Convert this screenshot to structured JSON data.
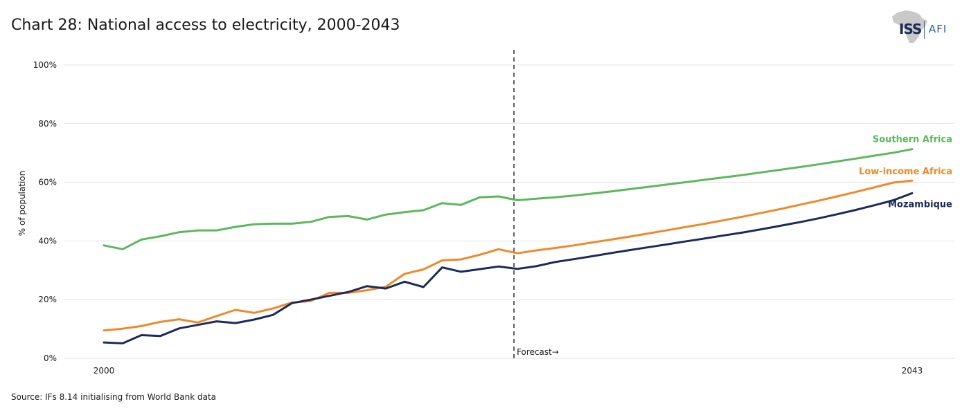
{
  "header": {
    "title": "Chart 28: National access to electricity, 2000-2043",
    "logo_text_left": "ISS",
    "logo_text_right": "AFI"
  },
  "footer": {
    "source": "Source: IFs 8.14 initialising from World Bank data"
  },
  "colors": {
    "southern_africa": "#5cb85c",
    "low_income_africa": "#f0882a",
    "mozambique": "#1b2a5a",
    "logo_iss": "#1b2a5a",
    "logo_afi": "#1f5fa8"
  },
  "chart_data": {
    "type": "line",
    "ylabel": "% of population",
    "ylim": [
      0,
      100
    ],
    "yticks": [
      0,
      20,
      40,
      60,
      80,
      100
    ],
    "ytick_labels": [
      "0%",
      "20%",
      "40%",
      "60%",
      "80%",
      "100%"
    ],
    "xlim": [
      2000,
      2043
    ],
    "xtick_labels": [
      "2000",
      "2043"
    ],
    "grid": true,
    "forecast_start": 2022,
    "forecast_label": "Forecast→",
    "x": [
      2000,
      2001,
      2002,
      2003,
      2004,
      2005,
      2006,
      2007,
      2008,
      2009,
      2010,
      2011,
      2012,
      2013,
      2014,
      2015,
      2016,
      2017,
      2018,
      2019,
      2020,
      2021,
      2022,
      2023,
      2024,
      2025,
      2026,
      2027,
      2028,
      2029,
      2030,
      2031,
      2032,
      2033,
      2034,
      2035,
      2036,
      2037,
      2038,
      2039,
      2040,
      2041,
      2042,
      2043
    ],
    "series": [
      {
        "name": "Southern Africa",
        "color": "#5cb85c",
        "values": [
          38.5,
          37.2,
          40.5,
          41.6,
          43,
          43.6,
          43.6,
          44.8,
          45.7,
          45.9,
          45.9,
          46.5,
          48.2,
          48.5,
          47.3,
          49,
          49.8,
          50.5,
          52.9,
          52.3,
          54.9,
          55.2,
          53.9,
          54.4,
          54.9,
          55.5,
          56.2,
          56.9,
          57.7,
          58.5,
          59.3,
          60.1,
          60.9,
          61.7,
          62.5,
          63.4,
          64.3,
          65.2,
          66.1,
          67.1,
          68.1,
          69.1,
          70.1,
          71.3
        ]
      },
      {
        "name": "Low-income Africa",
        "color": "#f0882a",
        "values": [
          9.5,
          10.1,
          11,
          12.4,
          13.3,
          12.2,
          14.4,
          16.5,
          15.5,
          17,
          19,
          19.5,
          22.3,
          22.3,
          23.2,
          24.4,
          28.8,
          30.3,
          33.4,
          33.7,
          35.3,
          37.2,
          35.8,
          36.8,
          37.6,
          38.5,
          39.5,
          40.5,
          41.5,
          42.6,
          43.7,
          44.8,
          45.9,
          47.1,
          48.3,
          49.6,
          50.9,
          52.3,
          53.7,
          55.2,
          56.7,
          58.3,
          59.9,
          60.6
        ]
      },
      {
        "name": "Mozambique",
        "color": "#1b2a5a",
        "values": [
          5.4,
          5.1,
          7.9,
          7.6,
          10.2,
          11.4,
          12.6,
          12,
          13.2,
          14.8,
          18.8,
          20,
          21.3,
          22.6,
          24.6,
          23.8,
          26.1,
          24.3,
          31,
          29.5,
          30.4,
          31.3,
          30.5,
          31.4,
          32.8,
          33.8,
          34.8,
          35.9,
          36.9,
          37.9,
          38.9,
          39.9,
          40.9,
          41.9,
          42.9,
          44,
          45.2,
          46.4,
          47.7,
          49.1,
          50.6,
          52.2,
          53.9,
          56.3
        ]
      }
    ]
  }
}
